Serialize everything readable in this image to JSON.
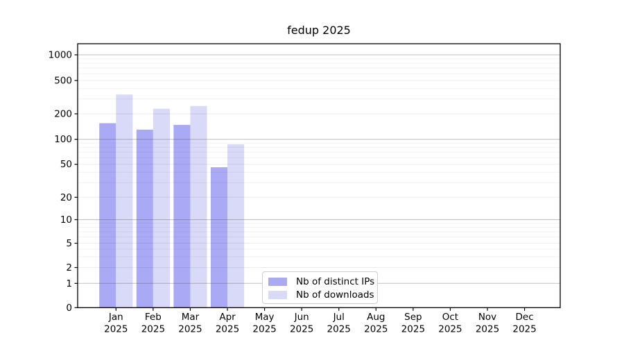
{
  "title": "fedup 2025",
  "chart_data": {
    "type": "bar",
    "title": "fedup 2025",
    "categories": [
      "Jan",
      "Feb",
      "Mar",
      "Apr",
      "May",
      "Jun",
      "Jul",
      "Aug",
      "Sep",
      "Oct",
      "Nov",
      "Dec"
    ],
    "category_year": "2025",
    "series": [
      {
        "name": "Nb of distinct IPs",
        "color": "#a9a9f6",
        "values": [
          155,
          130,
          148,
          46,
          null,
          null,
          null,
          null,
          null,
          null,
          null,
          null
        ]
      },
      {
        "name": "Nb of downloads",
        "color": "#d9d9f8",
        "values": [
          340,
          230,
          248,
          87,
          null,
          null,
          null,
          null,
          null,
          null,
          null,
          null
        ]
      }
    ],
    "xlabel": "",
    "ylabel": "",
    "y_scale": "symlog",
    "y_ticks": [
      0,
      1,
      2,
      5,
      10,
      20,
      50,
      100,
      200,
      500,
      1000
    ],
    "ylim": [
      0,
      1400
    ],
    "grid": true,
    "legend_position": "lower-center"
  },
  "colors": {
    "background": "#ffffff",
    "axis": "#000000",
    "major_grid": "#c2c2c2",
    "minor_grid": "#ededed",
    "tick_label": "#000000"
  }
}
